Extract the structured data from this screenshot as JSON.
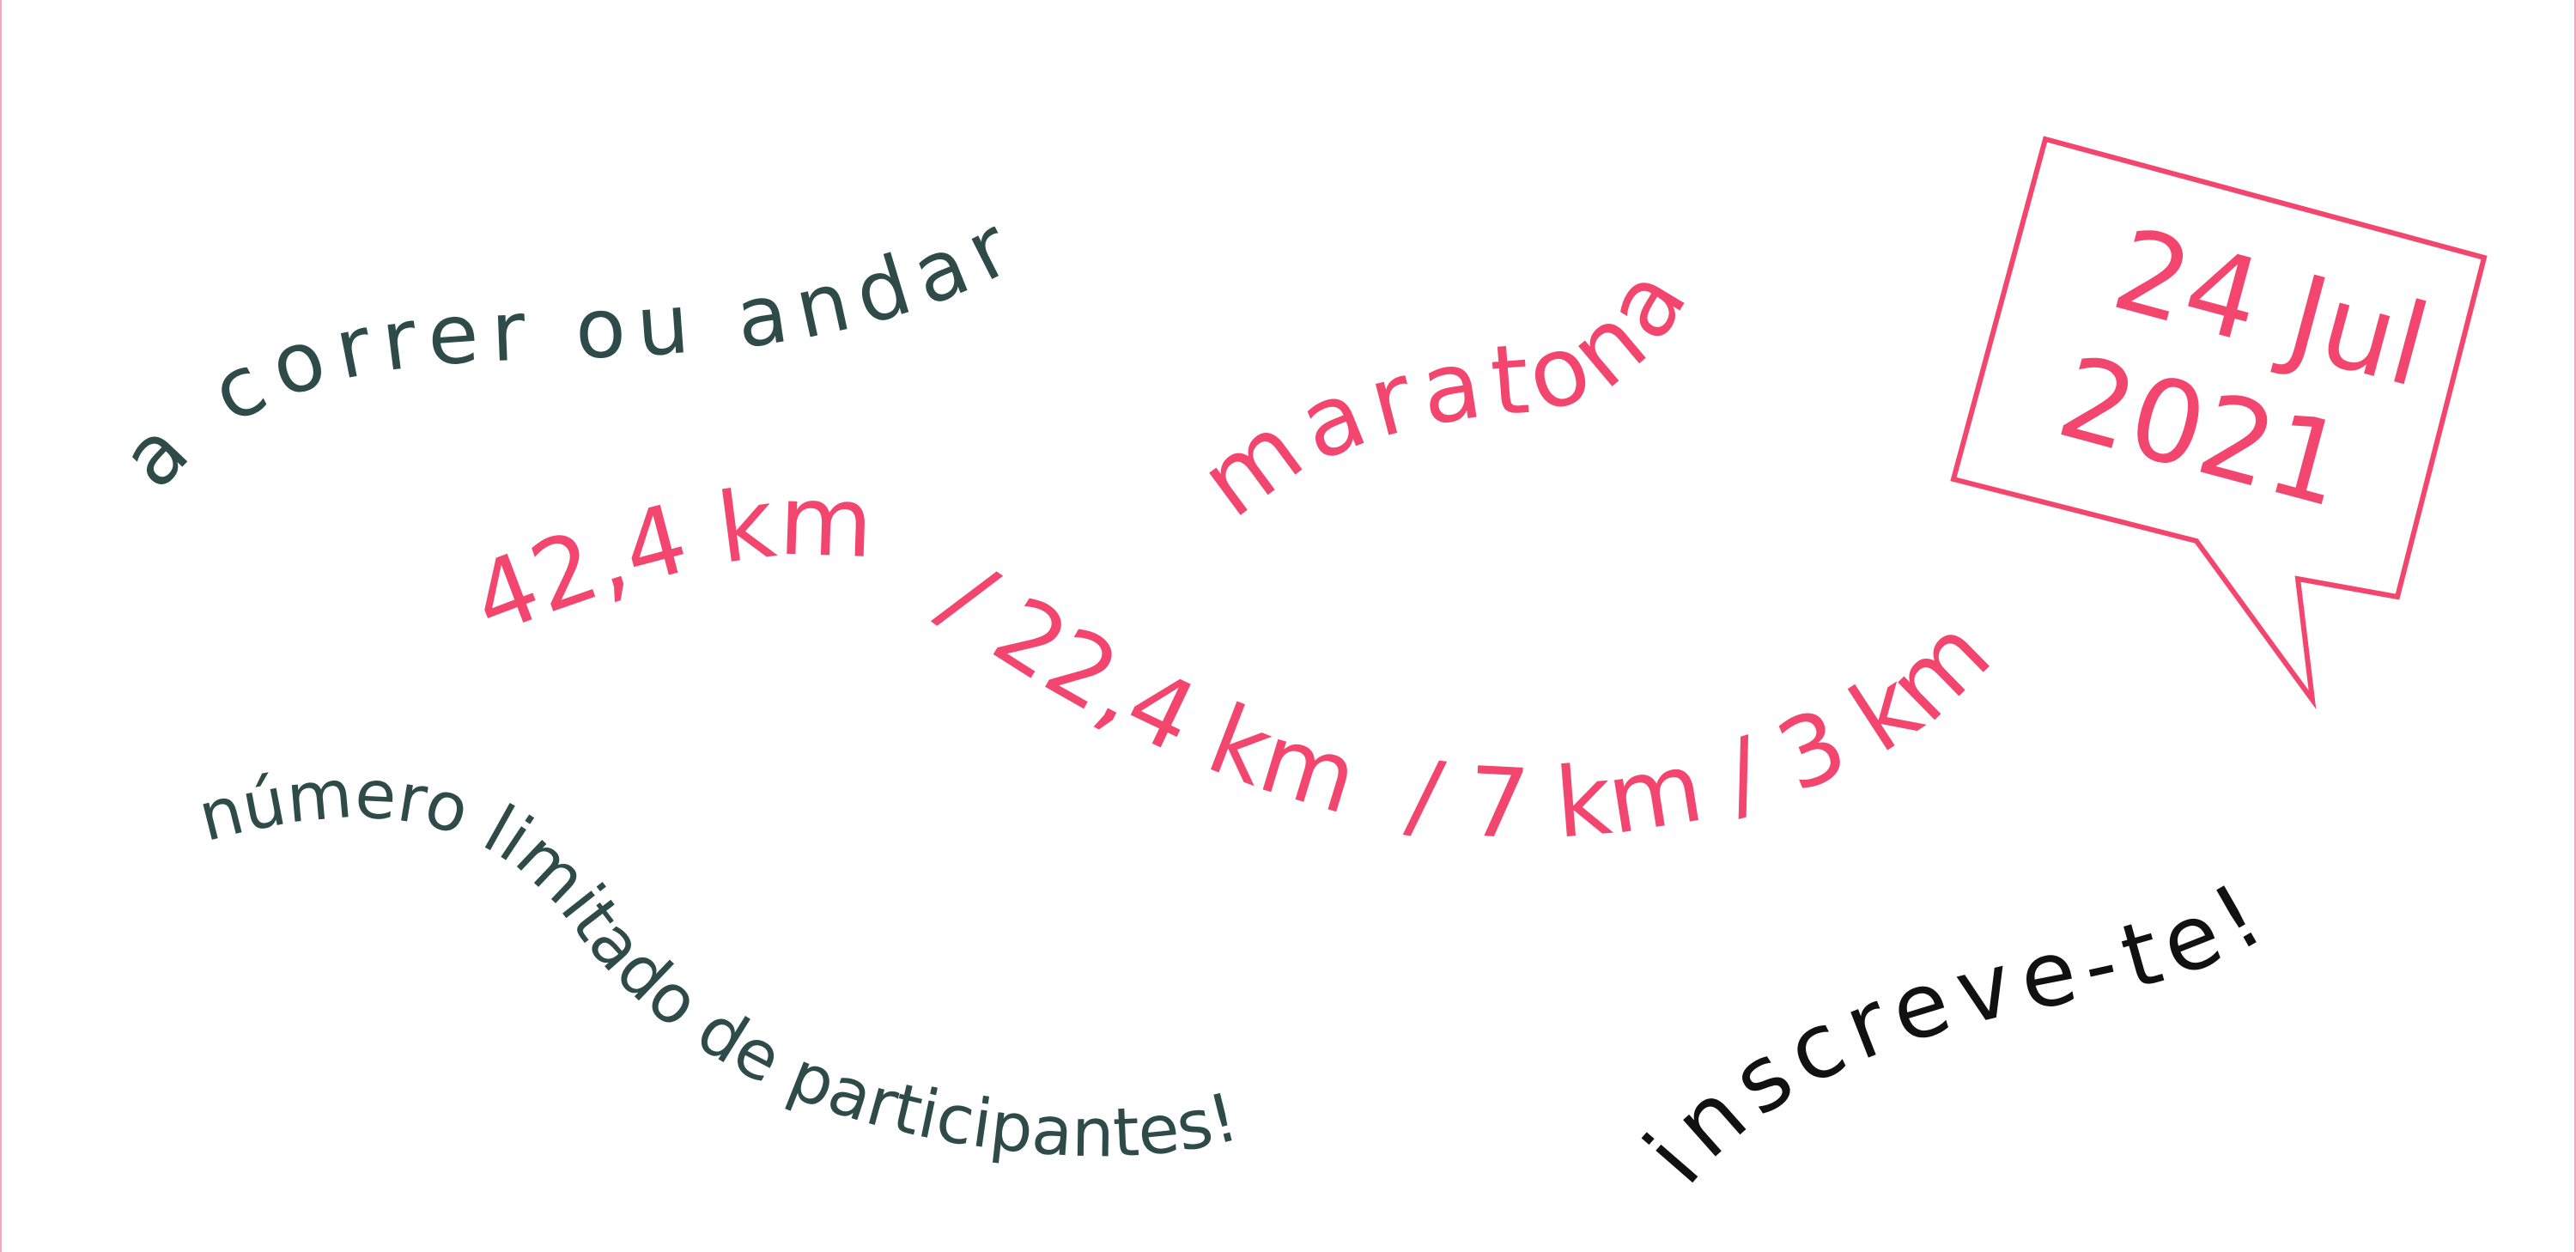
{
  "colors": {
    "pink": "#f2466f",
    "green": "#2e4b49",
    "black": "#111111",
    "background": "#ffffff"
  },
  "poster": {
    "tagline": "a correr ou andar",
    "event": "maratona",
    "distances": {
      "primary": "42,4 km",
      "others": "/ 22,4 km  / 7 km / 3 km"
    },
    "date": {
      "day_month": "24 Jul",
      "year": "2021"
    },
    "notice": "número limitado de participantes!",
    "call_to_action": "inscreve-te!"
  }
}
